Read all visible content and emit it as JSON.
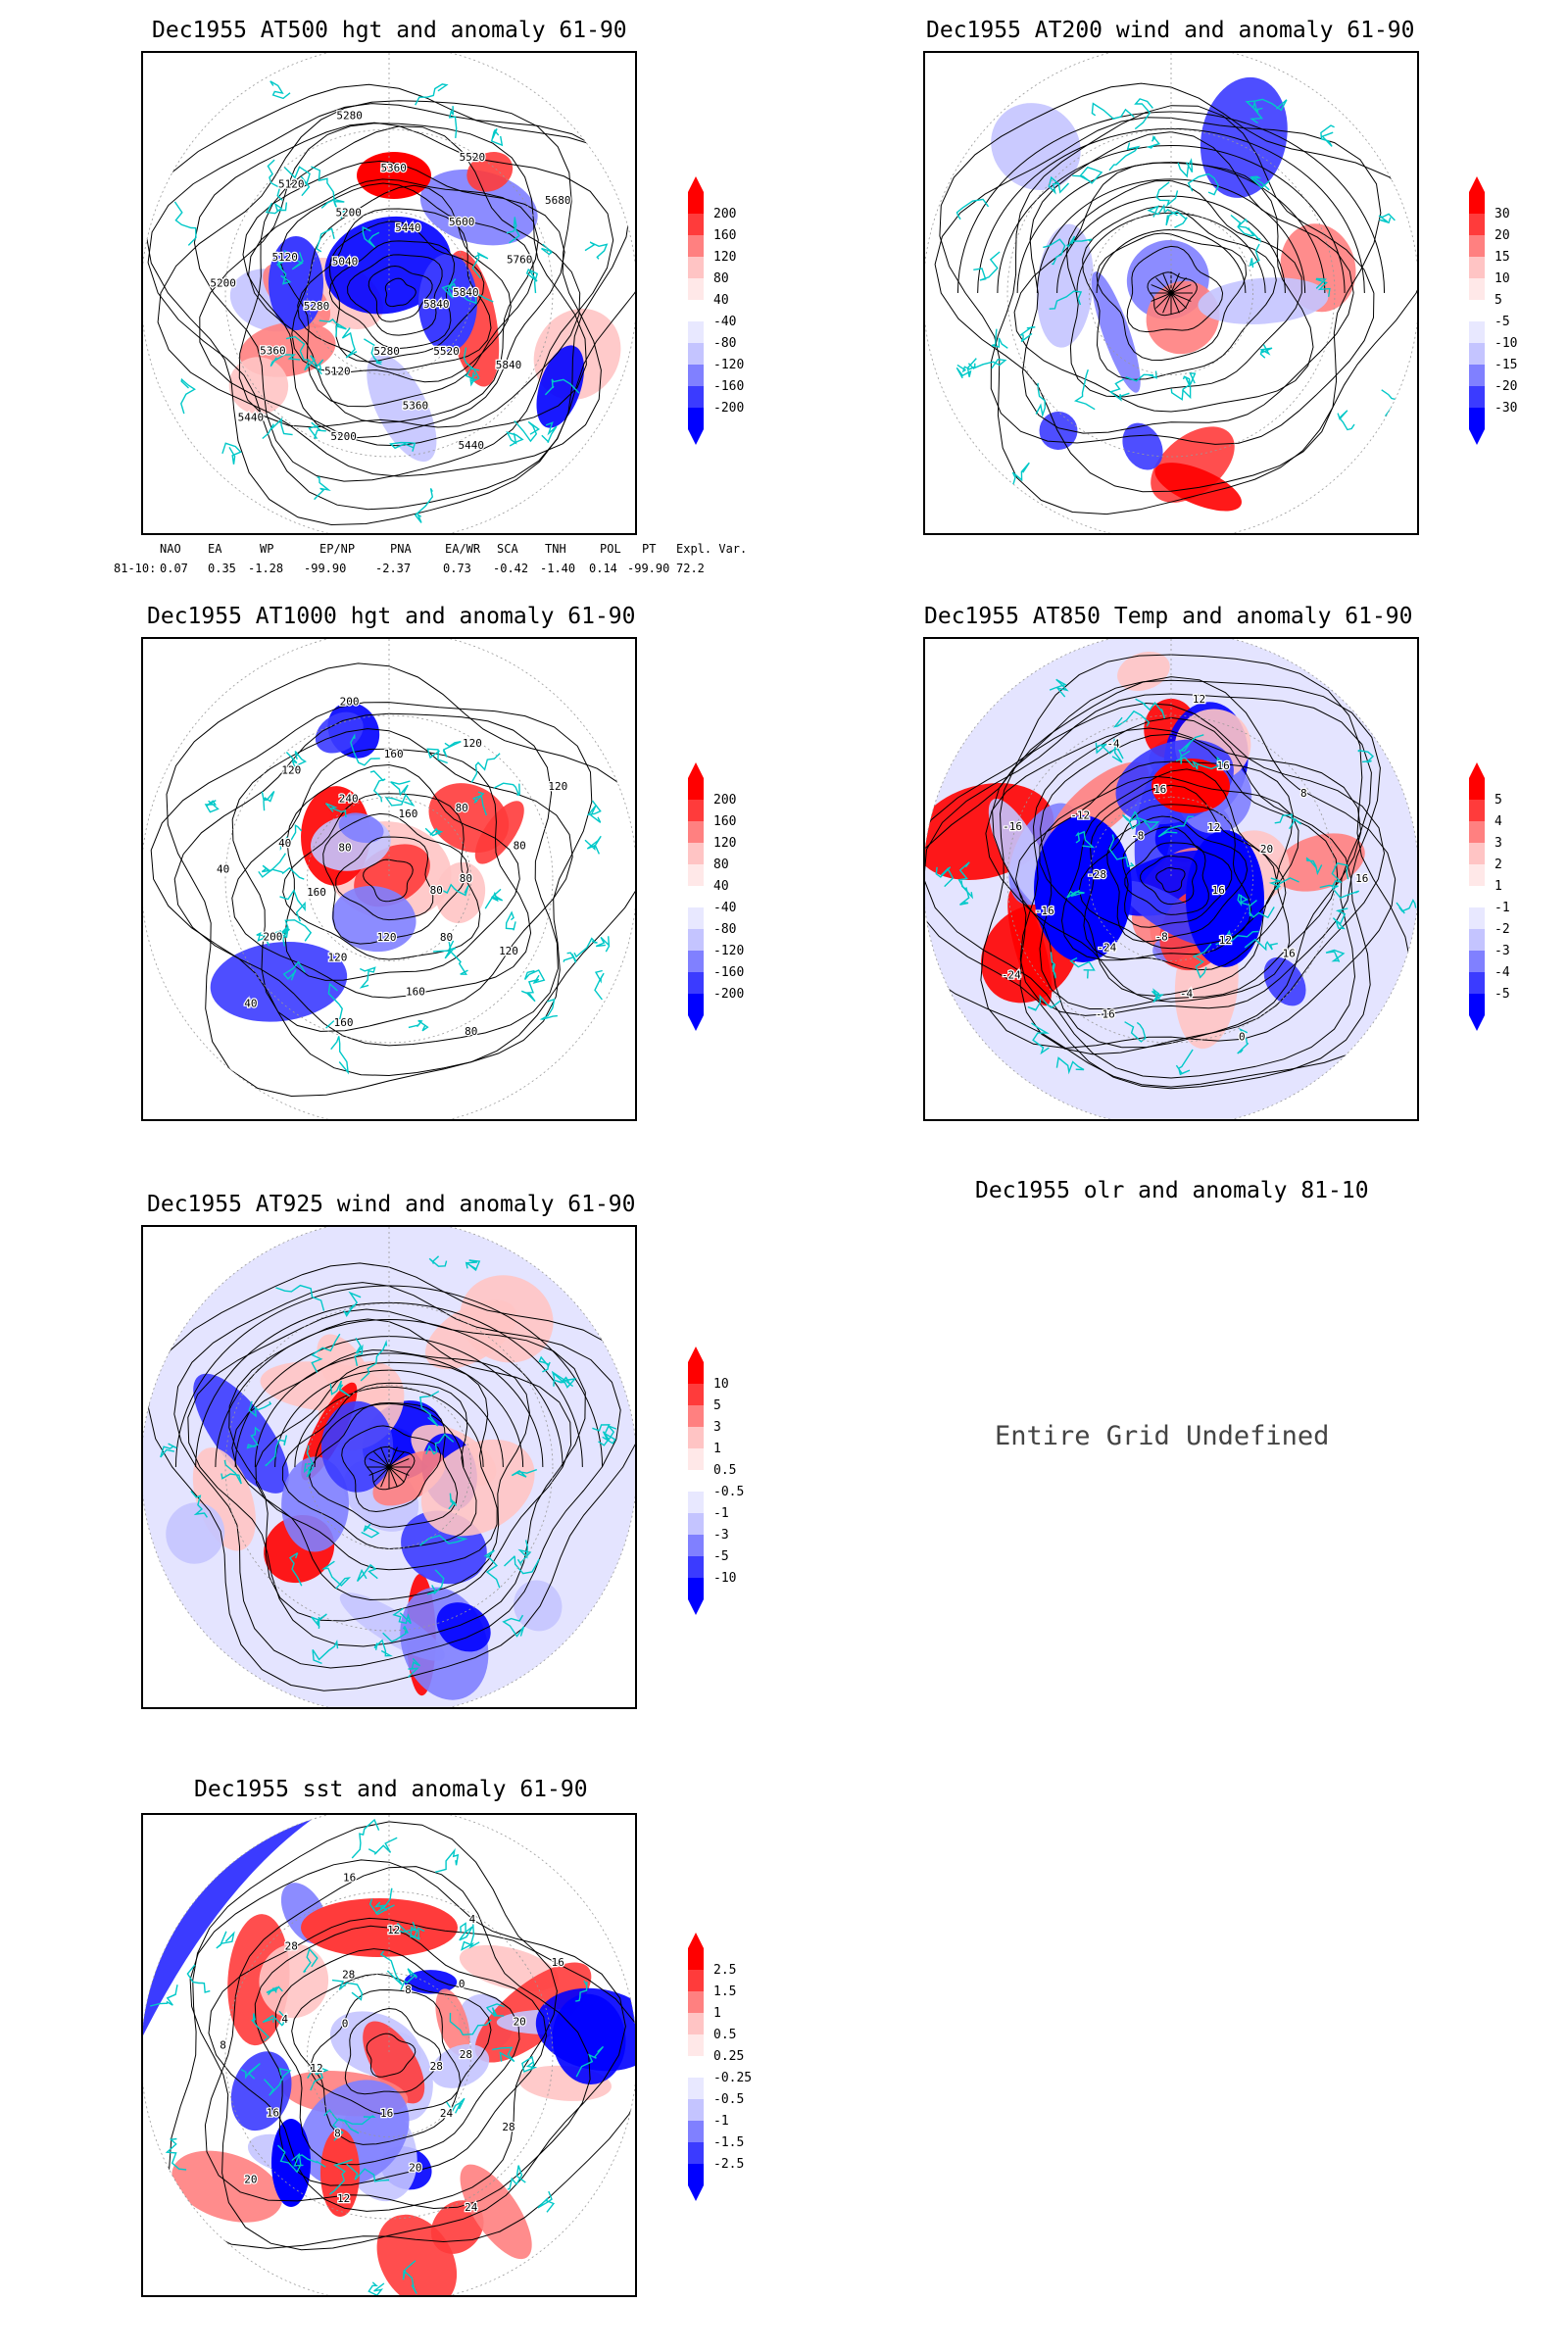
{
  "panels": [
    {
      "id": "p500",
      "title": "Dec1955 AT500 hgt and anomaly 61-90",
      "cbar": [
        "200",
        "160",
        "120",
        "80",
        "40",
        "-40",
        "-80",
        "-120",
        "-160",
        "-200"
      ],
      "colors": [
        "#ff0000",
        "#ff3b3b",
        "#ff8080",
        "#ffc4c4",
        "#ffe8e8",
        "#ffffff",
        "#e8e8ff",
        "#c4c4ff",
        "#8080ff",
        "#3b3bff",
        "#0000ff"
      ],
      "contour_labels": [
        "5840",
        "5840",
        "5520",
        "5440",
        "5360",
        "5280",
        "5200",
        "5120",
        "5440",
        "5360",
        "5280",
        "5200",
        "5120",
        "5040",
        "5120",
        "5200",
        "5280",
        "5360",
        "5440",
        "5520",
        "5600",
        "5680",
        "5760",
        "5840"
      ]
    },
    {
      "id": "p200",
      "title": "Dec1955 AT200 wind and anomaly 61-90",
      "cbar": [
        "30",
        "20",
        "15",
        "10",
        "5",
        "-5",
        "-10",
        "-15",
        "-20",
        "-30"
      ],
      "colors": [
        "#ff0000",
        "#ff3b3b",
        "#ff8080",
        "#ffc4c4",
        "#ffe8e8",
        "#ffffff",
        "#e8e8ff",
        "#c4c4ff",
        "#8080ff",
        "#3b3bff",
        "#0000ff"
      ],
      "contour_labels": []
    },
    {
      "id": "p1000",
      "title": "Dec1955 AT1000 hgt and anomaly 61-90",
      "cbar": [
        "200",
        "160",
        "120",
        "80",
        "40",
        "-40",
        "-80",
        "-120",
        "-160",
        "-200"
      ],
      "colors": [
        "#ff0000",
        "#ff3b3b",
        "#ff8080",
        "#ffc4c4",
        "#ffe8e8",
        "#ffffff",
        "#e8e8ff",
        "#c4c4ff",
        "#8080ff",
        "#3b3bff",
        "#0000ff"
      ],
      "contour_labels": [
        "80",
        "120",
        "80",
        "80",
        "160",
        "120",
        "160",
        "120",
        "40",
        "200",
        "160",
        "40",
        "40",
        "80",
        "120",
        "240",
        "200",
        "160",
        "160",
        "120",
        "80",
        "120",
        "80",
        "80"
      ]
    },
    {
      "id": "p850",
      "title": "Dec1955 AT850 Temp and anomaly 61-90",
      "cbar": [
        "5",
        "4",
        "3",
        "2",
        "1",
        "-1",
        "-2",
        "-3",
        "-4",
        "-5"
      ],
      "colors": [
        "#ff0000",
        "#ff3b3b",
        "#ff8080",
        "#ffc4c4",
        "#ffe8e8",
        "#ffffff",
        "#e8e8ff",
        "#c4c4ff",
        "#8080ff",
        "#3b3bff",
        "#0000ff"
      ],
      "contour_labels": [
        "16",
        "16",
        "12",
        "0",
        "-4",
        "-8",
        "-16",
        "-24",
        "-24",
        "-16",
        "-28",
        "-16",
        "-12",
        "-8",
        "-4",
        "16",
        "12",
        "16",
        "12",
        "8",
        "20",
        "16"
      ]
    },
    {
      "id": "p925",
      "title": "Dec1955 AT925 wind and anomaly 61-90",
      "cbar": [
        "10",
        "5",
        "3",
        "1",
        "0.5",
        "-0.5",
        "-1",
        "-3",
        "-5",
        "-10"
      ],
      "colors": [
        "#ff0000",
        "#ff3b3b",
        "#ff8080",
        "#ffc4c4",
        "#ffe8e8",
        "#ffffff",
        "#e8e8ff",
        "#c4c4ff",
        "#8080ff",
        "#3b3bff",
        "#0000ff"
      ],
      "contour_labels": []
    },
    {
      "id": "psst",
      "title": "Dec1955 sst and anomaly 61-90",
      "cbar": [
        "2.5",
        "1.5",
        "1",
        "0.5",
        "0.25",
        "-0.25",
        "-0.5",
        "-1",
        "-1.5",
        "-2.5"
      ],
      "colors": [
        "#ff0000",
        "#ff3b3b",
        "#ff8080",
        "#ffc4c4",
        "#ffe8e8",
        "#ffffff",
        "#e8e8ff",
        "#c4c4ff",
        "#8080ff",
        "#3b3bff",
        "#0000ff"
      ],
      "contour_labels": [
        "28",
        "28",
        "24",
        "24",
        "20",
        "16",
        "12",
        "8",
        "20",
        "16",
        "12",
        "8",
        "4",
        "0",
        "28",
        "28",
        "16",
        "12",
        "8",
        "4",
        "0",
        "16",
        "20",
        "28"
      ]
    }
  ],
  "olr": {
    "title": "Dec1955 olr and anomaly 81-10",
    "message": "Entire Grid Undefined"
  },
  "teleconnection": {
    "headers": [
      "NAO",
      "EA",
      "WP",
      "EP/NP",
      "PNA",
      "EA/WR",
      "SCA",
      "TNH",
      "POL",
      "PT",
      "Expl. Var."
    ],
    "row_label": "81-10:",
    "values": [
      "0.07",
      "0.35",
      "-1.28",
      "-99.90",
      "-2.37",
      "0.73",
      "-0.42",
      "-1.40",
      "0.14",
      "-99.90",
      "72.2"
    ]
  },
  "style": {
    "coast_color": "#00c8c8",
    "contour_color": "#000000"
  }
}
